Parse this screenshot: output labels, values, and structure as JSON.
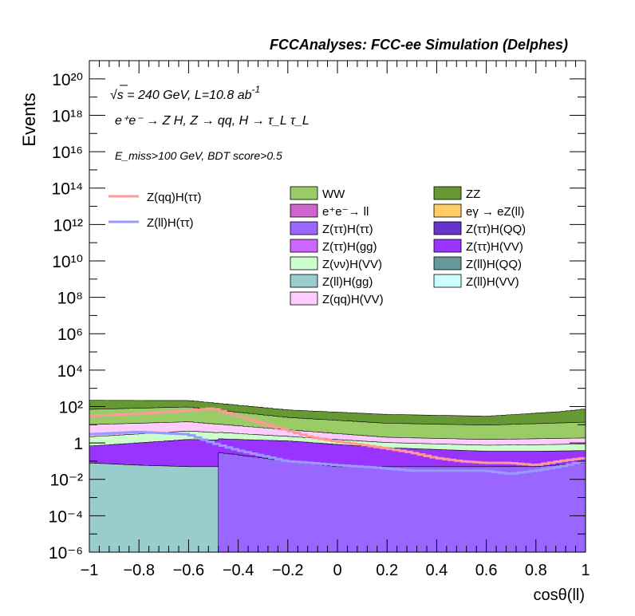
{
  "header": "FCCAnalyses: FCC-ee Simulation (Delphes)",
  "annotations": {
    "energy": "√s = 240 GeV, L=10.8 ab",
    "energy_sup": "-1",
    "process": "e⁺e⁻ → Z H, Z → qq, H → τ_L τ_L",
    "cuts": "E_miss>100 GeV, BDT score>0.5"
  },
  "chart_data": {
    "type": "area",
    "xlabel": "cosθ(ll)",
    "ylabel": "Events",
    "xlim": [
      -1,
      1
    ],
    "ylim": [
      1e-06,
      1e+21
    ],
    "yscale": "log",
    "x_ticks": [
      "−1",
      "−0.8",
      "−0.6",
      "−0.4",
      "−0.2",
      "0",
      "0.2",
      "0.4",
      "0.6",
      "0.8",
      "1"
    ],
    "y_ticks": [
      "10⁻⁶",
      "10⁻⁴",
      "10⁻²",
      "1",
      "10²",
      "10⁴",
      "10⁶",
      "10⁸",
      "10¹⁰",
      "10¹²",
      "10¹⁴",
      "10¹⁶",
      "10¹⁸",
      "10²⁰"
    ],
    "stacked_backgrounds": [
      {
        "name": "Z(ll)H(gg)",
        "color": "#99cccc",
        "x": [
          -1,
          -0.8,
          -0.6,
          -0.48
        ],
        "y": [
          0.08,
          0.06,
          0.05,
          0.05
        ]
      },
      {
        "name": "Z(ττ)H(ττ)",
        "color": "#9966ff",
        "x": [
          -0.48,
          -0.2,
          0,
          0.2,
          0.4,
          0.6,
          0.8,
          1
        ],
        "y": [
          0.3,
          0.1,
          0.05,
          0.05,
          0.05,
          0.05,
          0.05,
          0.08
        ]
      },
      {
        "name": "Z(ττ)H(VV)",
        "color": "#9933ff",
        "x": [
          -1,
          -0.6,
          -0.2,
          0.2,
          0.6,
          1
        ],
        "y": [
          0.6,
          1.5,
          1.2,
          0.5,
          0.3,
          0.3
        ]
      },
      {
        "name": "Z(νν)H(VV)",
        "color": "#ccffcc",
        "x": [
          -1,
          -0.6,
          -0.2,
          0.2,
          0.6,
          1
        ],
        "y": [
          1.5,
          3,
          1,
          0.5,
          0.4,
          0.5
        ]
      },
      {
        "name": "Z(qq)H(VV)",
        "color": "#ffccff",
        "x": [
          -1,
          -0.6,
          -0.2,
          0.2,
          0.6,
          1
        ],
        "y": [
          8,
          10,
          3,
          1,
          0.8,
          1
        ]
      },
      {
        "name": "WW",
        "color": "#99cc66",
        "x": [
          -1,
          -0.6,
          -0.2,
          0.2,
          0.6,
          1
        ],
        "y": [
          60,
          80,
          20,
          10,
          8,
          12
        ]
      },
      {
        "name": "ZZ",
        "color": "#669933",
        "x": [
          -1,
          -0.6,
          -0.2,
          0.2,
          0.6,
          0.9,
          1
        ],
        "y": [
          150,
          120,
          40,
          25,
          20,
          40,
          60
        ]
      }
    ],
    "signal_lines": [
      {
        "name": "Z(qq)H(ττ)",
        "color": "#ff9999",
        "x": [
          -1,
          -0.8,
          -0.6,
          -0.5,
          -0.4,
          -0.3,
          -0.2,
          -0.1,
          0,
          0.1,
          0.2,
          0.3,
          0.4,
          0.5,
          0.6,
          0.7,
          0.8,
          0.9,
          1
        ],
        "y": [
          30,
          40,
          60,
          80,
          30,
          12,
          5,
          2,
          1.2,
          0.8,
          0.5,
          0.3,
          0.15,
          0.1,
          0.08,
          0.08,
          0.06,
          0.1,
          0.15
        ]
      },
      {
        "name": "Z(ll)H(ττ)",
        "color": "#9999ff",
        "x": [
          -1,
          -0.8,
          -0.6,
          -0.5,
          -0.4,
          -0.3,
          -0.2,
          -0.1,
          0,
          0.1,
          0.2,
          0.3,
          0.4,
          0.5,
          0.6,
          0.7,
          0.8,
          0.9,
          1
        ],
        "y": [
          3,
          4,
          3,
          1,
          0.4,
          0.2,
          0.1,
          0.08,
          0.06,
          0.05,
          0.04,
          0.03,
          0.03,
          0.03,
          0.03,
          0.02,
          0.03,
          0.05,
          0.1
        ]
      }
    ],
    "legend": {
      "left": [
        {
          "name": "Z(qq)H(ττ)",
          "color": "#ff9999",
          "kind": "line"
        },
        {
          "name": "Z(ll)H(ττ)",
          "color": "#9999ff",
          "kind": "line"
        }
      ],
      "grid": [
        {
          "name": "WW",
          "color": "#99cc66"
        },
        {
          "name": "ZZ",
          "color": "#669933"
        },
        {
          "name": "e⁺e⁻→ ll",
          "color": "#cc66cc"
        },
        {
          "name": "eγ → eZ(ll)",
          "color": "#ffcc66"
        },
        {
          "name": "Z(ττ)H(ττ)",
          "color": "#9966ff"
        },
        {
          "name": "Z(ττ)H(QQ)",
          "color": "#6633cc"
        },
        {
          "name": "Z(ττ)H(gg)",
          "color": "#cc66ff"
        },
        {
          "name": "Z(ττ)H(VV)",
          "color": "#9933ff"
        },
        {
          "name": "Z(νν)H(VV)",
          "color": "#ccffcc"
        },
        {
          "name": "Z(ll)H(QQ)",
          "color": "#669999"
        },
        {
          "name": "Z(ll)H(gg)",
          "color": "#99cccc"
        },
        {
          "name": "Z(ll)H(VV)",
          "color": "#ccffff"
        },
        {
          "name": "Z(qq)H(VV)",
          "color": "#ffccff"
        }
      ]
    },
    "grid": false,
    "legend_placement": "top-center"
  }
}
